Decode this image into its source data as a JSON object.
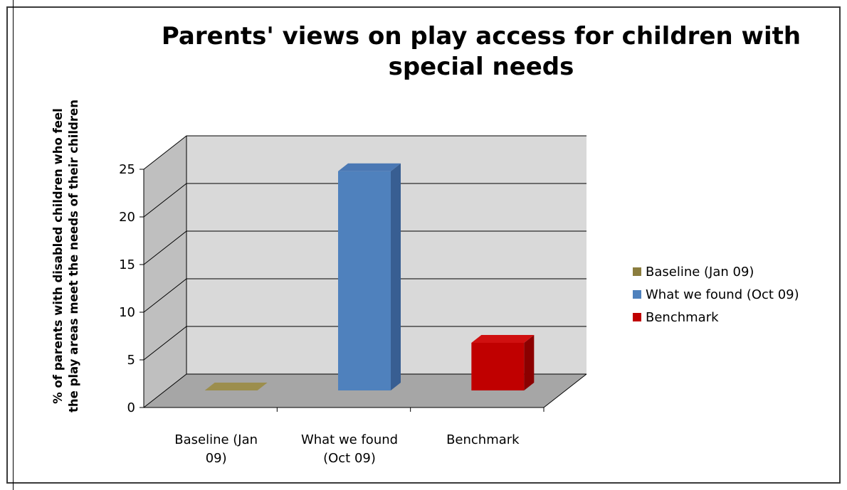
{
  "chart_data": {
    "type": "bar",
    "title": "Parents' views on play access for children with special needs",
    "ylabel_lines": [
      "% of parents with disabled children who feel",
      "the play areas meet the needs of their children"
    ],
    "categories": [
      "Baseline (Jan 09)",
      "What we found (Oct 09)",
      "Benchmark"
    ],
    "category_lines": [
      [
        "Baseline (Jan",
        "09)"
      ],
      [
        "What we found",
        "(Oct 09)"
      ],
      [
        "Benchmark"
      ]
    ],
    "values": [
      0,
      23,
      5
    ],
    "ylim": [
      0,
      25
    ],
    "yticks": [
      "0",
      "5",
      "10",
      "15",
      "20",
      "25"
    ],
    "grid": true,
    "three_d": true,
    "legend_position": "right",
    "legend": [
      "Baseline (Jan 09)",
      "What we found (Oct 09)",
      "Benchmark"
    ],
    "colors": {
      "bars": [
        "#8b7d3e",
        "#4f81bd",
        "#c00000"
      ],
      "bar_tops": [
        "#9c8e4d",
        "#4a78b4",
        "#d01010"
      ],
      "bar_sides": [
        "#6e6230",
        "#385e92",
        "#8b0000"
      ],
      "wall": "#d9d9d9",
      "floor": "#a6a6a6",
      "side_wall": "#bfbfbf"
    }
  }
}
